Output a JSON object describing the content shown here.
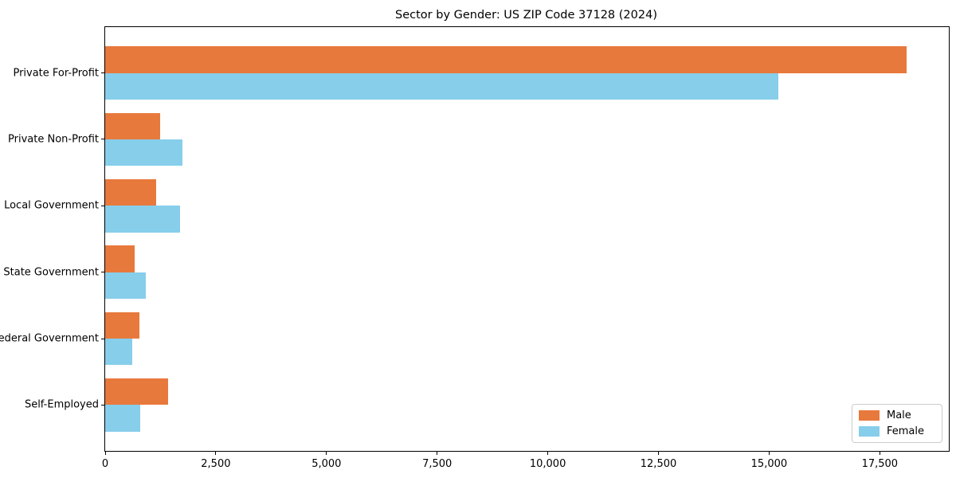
{
  "chart_data": {
    "type": "bar",
    "orientation": "horizontal",
    "title": "Sector by Gender: US ZIP Code 37128 (2024)",
    "categories": [
      "Private For-Profit",
      "Private Non-Profit",
      "Local Government",
      "State Government",
      "Federal Government",
      "Self-Employed"
    ],
    "series": [
      {
        "name": "Male",
        "color": "#e8793c",
        "values": [
          18100,
          1250,
          1150,
          660,
          780,
          1430
        ]
      },
      {
        "name": "Female",
        "color": "#87ceeb",
        "values": [
          15200,
          1750,
          1700,
          920,
          610,
          800
        ]
      }
    ],
    "xlabel": "",
    "ylabel": "",
    "xlim": [
      0,
      19060
    ],
    "xticks": [
      0,
      2500,
      5000,
      7500,
      10000,
      12500,
      15000,
      17500
    ],
    "xtick_labels": [
      "0",
      "2,500",
      "5,000",
      "7,500",
      "10,000",
      "12,500",
      "15,000",
      "17,500"
    ],
    "grid": false,
    "legend": {
      "position": "lower right",
      "entries": [
        "Male",
        "Female"
      ]
    }
  },
  "colors": {
    "male": "#e8793c",
    "female": "#87ceeb",
    "spine": "#000000",
    "legend_border": "#cccccc",
    "background": "#ffffff"
  }
}
